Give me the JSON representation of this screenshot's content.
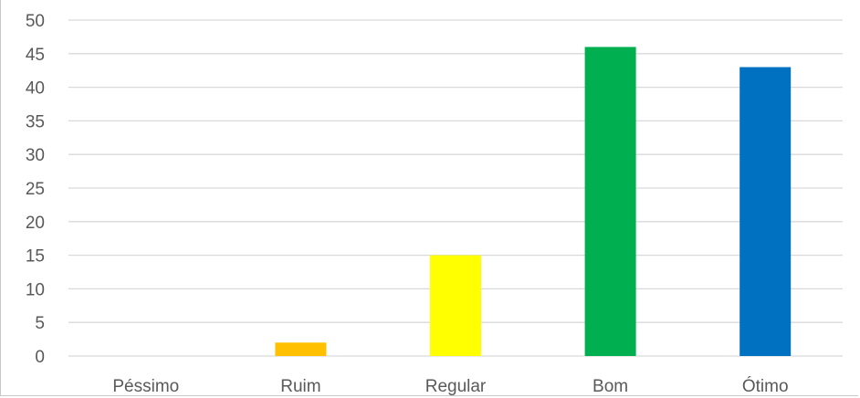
{
  "chart_data": {
    "type": "bar",
    "title": "",
    "xlabel": "",
    "ylabel": "",
    "categories": [
      "Péssimo",
      "Ruim",
      "Regular",
      "Bom",
      "Ótimo"
    ],
    "values": [
      0,
      2,
      15,
      46,
      43
    ],
    "colors": [
      "#4472c4",
      "#ffc000",
      "#ffff00",
      "#00b050",
      "#0070c0"
    ],
    "ylim": [
      0,
      50
    ],
    "yticks": [
      "0",
      "5",
      "10",
      "15",
      "20",
      "25",
      "30",
      "35",
      "40",
      "45",
      "50"
    ],
    "grid": true,
    "legend": "none"
  }
}
